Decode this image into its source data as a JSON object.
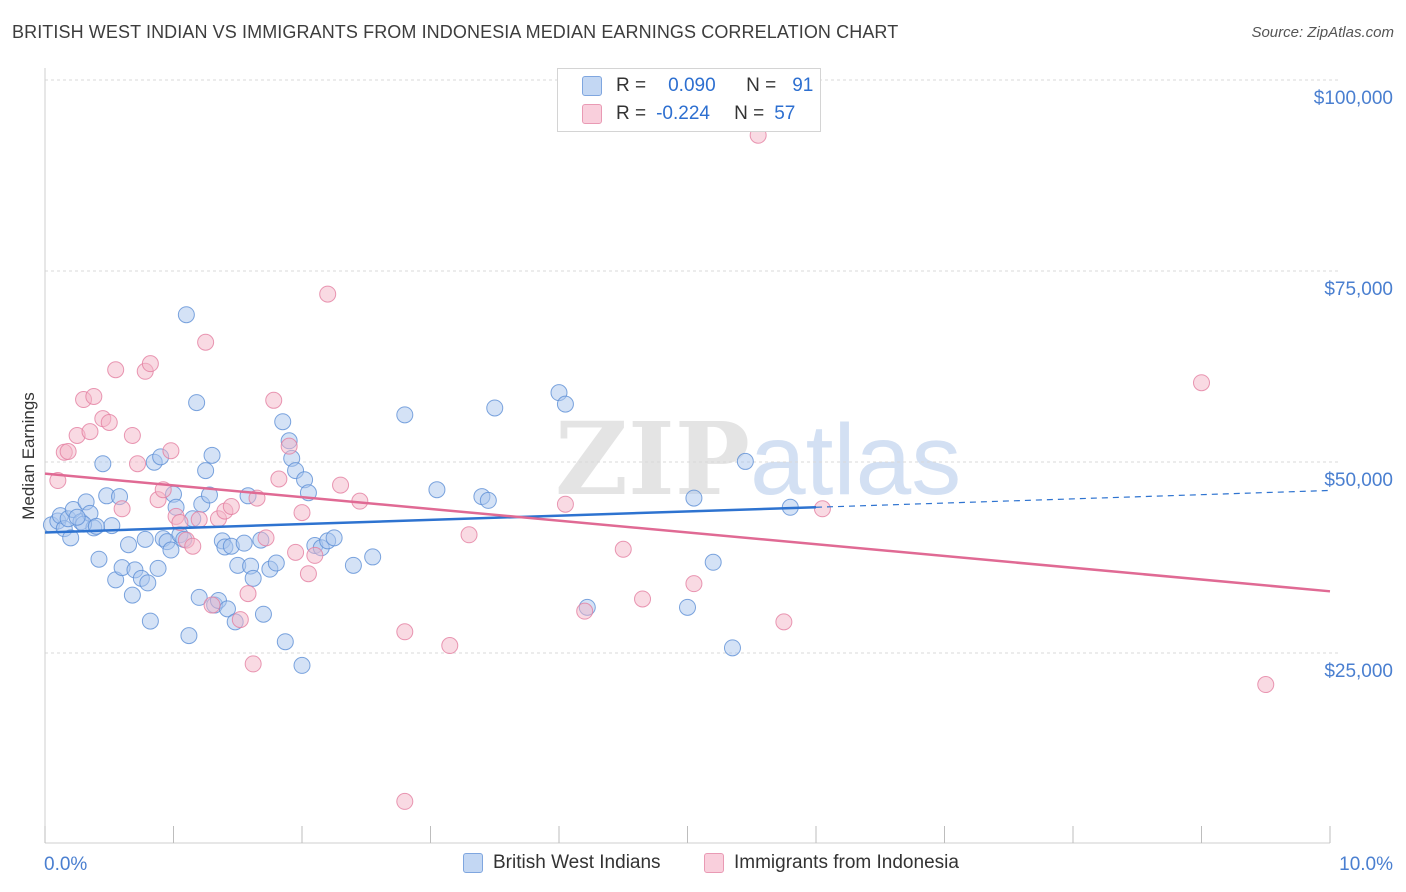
{
  "header": {
    "title": "BRITISH WEST INDIAN VS IMMIGRANTS FROM INDONESIA MEDIAN EARNINGS CORRELATION CHART",
    "source": "Source: ZipAtlas.com"
  },
  "watermark": {
    "zip": "ZIP",
    "atlas": "atlas"
  },
  "legend": {
    "rows": [
      {
        "r_label": "R =",
        "r_value": "0.090",
        "n_label": "N =",
        "n_value": "91",
        "color": "#a9c6ee"
      },
      {
        "r_label": "R =",
        "r_value": "-0.224",
        "n_label": "N =",
        "n_value": "57",
        "color": "#f4b5c8"
      }
    ]
  },
  "bottom_legend": {
    "series_a": "British West Indians",
    "series_b": "Immigrants from Indonesia"
  },
  "colors": {
    "blue_fill": "#a9c6ee",
    "blue_stroke": "#5c8fd6",
    "blue_line": "#2e73d0",
    "pink_fill": "#f4b5c8",
    "pink_stroke": "#e47ea0",
    "pink_line": "#e06a94",
    "axis_text": "#4a7fd0",
    "grid": "#d9d9d9"
  },
  "chart_data": {
    "type": "scatter",
    "ylabel": "Median Earnings",
    "xlim": [
      0,
      10
    ],
    "ylim": [
      0,
      105000
    ],
    "x_ticks_labeled": [
      {
        "value": 0,
        "label": "0.0%"
      },
      {
        "value": 10,
        "label": "10.0%"
      }
    ],
    "y_ticks": [
      {
        "value": 100000,
        "label": "$100,000"
      },
      {
        "value": 75000,
        "label": "$75,000"
      },
      {
        "value": 50000,
        "label": "$50,000"
      },
      {
        "value": 25000,
        "label": "$25,000"
      }
    ],
    "grid": true,
    "legend_position": "top-center",
    "series": [
      {
        "name": "British West Indians",
        "color": "#a9c6ee",
        "trend": {
          "x": [
            0.0,
            6.0
          ],
          "y": [
            43000,
            46300
          ],
          "dashed_extension_x": [
            6.0,
            10.0
          ],
          "dashed_extension_y": [
            46300,
            48500
          ]
        },
        "points": [
          [
            0.05,
            44000
          ],
          [
            0.1,
            44500
          ],
          [
            0.12,
            45200
          ],
          [
            0.15,
            43500
          ],
          [
            0.18,
            44800
          ],
          [
            0.2,
            42300
          ],
          [
            0.22,
            46000
          ],
          [
            0.28,
            44400
          ],
          [
            0.32,
            47000
          ],
          [
            0.35,
            45500
          ],
          [
            0.38,
            43600
          ],
          [
            0.42,
            39500
          ],
          [
            0.45,
            52000
          ],
          [
            0.48,
            47800
          ],
          [
            0.52,
            43900
          ],
          [
            0.55,
            36800
          ],
          [
            0.58,
            47700
          ],
          [
            0.6,
            38400
          ],
          [
            0.65,
            41400
          ],
          [
            0.68,
            34800
          ],
          [
            0.7,
            38100
          ],
          [
            0.75,
            37000
          ],
          [
            0.78,
            42100
          ],
          [
            0.8,
            36400
          ],
          [
            0.82,
            31400
          ],
          [
            0.85,
            52200
          ],
          [
            0.88,
            38300
          ],
          [
            0.9,
            52900
          ],
          [
            0.92,
            42200
          ],
          [
            0.95,
            41800
          ],
          [
            0.98,
            40700
          ],
          [
            1.0,
            48000
          ],
          [
            1.02,
            46300
          ],
          [
            1.05,
            42700
          ],
          [
            1.08,
            42100
          ],
          [
            1.1,
            71500
          ],
          [
            1.12,
            29500
          ],
          [
            1.15,
            44800
          ],
          [
            1.18,
            60000
          ],
          [
            1.2,
            34500
          ],
          [
            1.22,
            46700
          ],
          [
            1.25,
            51100
          ],
          [
            1.28,
            47900
          ],
          [
            1.3,
            53100
          ],
          [
            1.32,
            33500
          ],
          [
            1.35,
            34100
          ],
          [
            1.38,
            41900
          ],
          [
            1.4,
            41100
          ],
          [
            1.42,
            33000
          ],
          [
            1.45,
            41200
          ],
          [
            1.48,
            31300
          ],
          [
            1.5,
            38700
          ],
          [
            1.55,
            41600
          ],
          [
            1.58,
            47800
          ],
          [
            1.6,
            38600
          ],
          [
            1.62,
            37000
          ],
          [
            1.7,
            32300
          ],
          [
            1.75,
            38200
          ],
          [
            1.8,
            39000
          ],
          [
            1.85,
            57500
          ],
          [
            1.87,
            28700
          ],
          [
            1.9,
            55000
          ],
          [
            1.92,
            52700
          ],
          [
            1.95,
            51100
          ],
          [
            2.0,
            25600
          ],
          [
            2.02,
            49900
          ],
          [
            2.05,
            48200
          ],
          [
            2.1,
            41300
          ],
          [
            2.15,
            41000
          ],
          [
            2.2,
            41900
          ],
          [
            2.4,
            38700
          ],
          [
            2.55,
            39800
          ],
          [
            2.8,
            58400
          ],
          [
            3.05,
            48600
          ],
          [
            3.4,
            47700
          ],
          [
            3.45,
            47200
          ],
          [
            3.5,
            59300
          ],
          [
            4.0,
            61300
          ],
          [
            4.05,
            59800
          ],
          [
            4.22,
            33200
          ],
          [
            5.05,
            47500
          ],
          [
            5.2,
            39100
          ],
          [
            5.35,
            27900
          ],
          [
            5.45,
            52300
          ],
          [
            5.8,
            46300
          ],
          [
            5.0,
            33200
          ],
          [
            0.3,
            44100
          ],
          [
            0.25,
            45000
          ],
          [
            0.4,
            43800
          ],
          [
            1.68,
            42000
          ],
          [
            2.25,
            42300
          ]
        ]
      },
      {
        "name": "Immigrants from Indonesia",
        "color": "#f4b5c8",
        "trend": {
          "x": [
            0.0,
            10.0
          ],
          "y": [
            50700,
            35300
          ]
        },
        "points": [
          [
            0.1,
            49800
          ],
          [
            0.15,
            53500
          ],
          [
            0.18,
            53600
          ],
          [
            0.25,
            55700
          ],
          [
            0.3,
            60400
          ],
          [
            0.35,
            56200
          ],
          [
            0.38,
            60800
          ],
          [
            0.45,
            57900
          ],
          [
            0.5,
            57400
          ],
          [
            0.55,
            64300
          ],
          [
            0.6,
            46100
          ],
          [
            0.68,
            55700
          ],
          [
            0.72,
            52000
          ],
          [
            0.78,
            64100
          ],
          [
            0.82,
            65100
          ],
          [
            0.88,
            47300
          ],
          [
            0.92,
            48600
          ],
          [
            0.98,
            53700
          ],
          [
            1.02,
            45100
          ],
          [
            1.05,
            44300
          ],
          [
            1.1,
            42000
          ],
          [
            1.15,
            41200
          ],
          [
            1.2,
            44700
          ],
          [
            1.25,
            67900
          ],
          [
            1.3,
            33500
          ],
          [
            1.35,
            44800
          ],
          [
            1.4,
            45800
          ],
          [
            1.45,
            46400
          ],
          [
            1.52,
            31600
          ],
          [
            1.58,
            35000
          ],
          [
            1.62,
            25800
          ],
          [
            1.65,
            47500
          ],
          [
            1.72,
            42300
          ],
          [
            1.78,
            60300
          ],
          [
            1.82,
            50000
          ],
          [
            1.9,
            54300
          ],
          [
            1.95,
            40400
          ],
          [
            2.0,
            45600
          ],
          [
            2.05,
            37600
          ],
          [
            2.1,
            40000
          ],
          [
            2.2,
            74200
          ],
          [
            2.3,
            49200
          ],
          [
            2.45,
            47100
          ],
          [
            2.8,
            30000
          ],
          [
            2.8,
            7800
          ],
          [
            3.15,
            28200
          ],
          [
            3.3,
            42700
          ],
          [
            4.05,
            46700
          ],
          [
            4.2,
            32700
          ],
          [
            4.5,
            40800
          ],
          [
            4.65,
            34300
          ],
          [
            5.05,
            36300
          ],
          [
            5.55,
            95000
          ],
          [
            5.75,
            31300
          ],
          [
            6.05,
            46100
          ],
          [
            9.0,
            62600
          ],
          [
            9.5,
            23100
          ]
        ]
      }
    ]
  }
}
